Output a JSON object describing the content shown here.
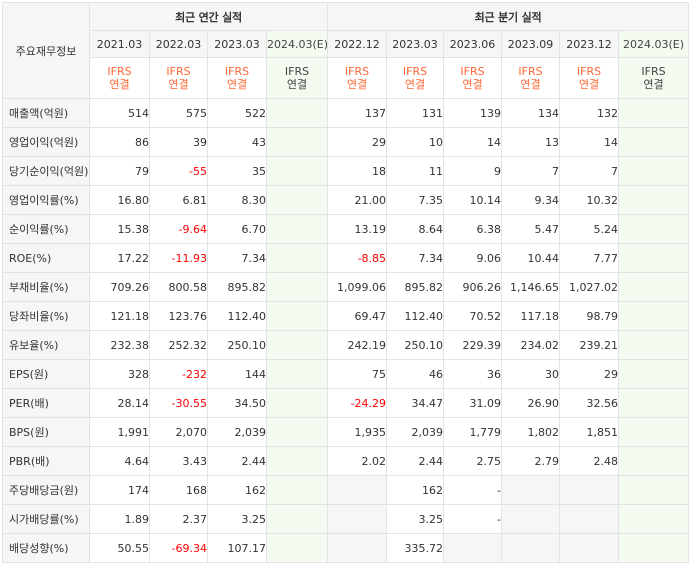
{
  "header": {
    "corner_label": "주요재무정보",
    "annual_title": "최근 연간 실적",
    "quarter_title": "최근 분기 실적",
    "annual_periods": [
      "2021.03",
      "2022.03",
      "2023.03",
      "2024.03(E)"
    ],
    "quarter_periods": [
      "2022.12",
      "2023.03",
      "2023.06",
      "2023.09",
      "2023.12",
      "2024.03(E)"
    ],
    "ifrs_top": "IFRS",
    "ifrs_bottom": "연결"
  },
  "rows": [
    {
      "label": "매출액(억원)",
      "annual": [
        "514",
        "575",
        "522",
        ""
      ],
      "quarter": [
        "137",
        "131",
        "139",
        "134",
        "132",
        ""
      ]
    },
    {
      "label": "영업이익(억원)",
      "annual": [
        "86",
        "39",
        "43",
        ""
      ],
      "quarter": [
        "29",
        "10",
        "14",
        "13",
        "14",
        ""
      ]
    },
    {
      "label": "당기순이익(억원)",
      "annual": [
        "79",
        "-55",
        "35",
        ""
      ],
      "quarter": [
        "18",
        "11",
        "9",
        "7",
        "7",
        ""
      ]
    },
    {
      "label": "영업이익률(%)",
      "annual": [
        "16.80",
        "6.81",
        "8.30",
        ""
      ],
      "quarter": [
        "21.00",
        "7.35",
        "10.14",
        "9.34",
        "10.32",
        ""
      ]
    },
    {
      "label": "순이익률(%)",
      "annual": [
        "15.38",
        "-9.64",
        "6.70",
        ""
      ],
      "quarter": [
        "13.19",
        "8.64",
        "6.38",
        "5.47",
        "5.24",
        ""
      ]
    },
    {
      "label": "ROE(%)",
      "annual": [
        "17.22",
        "-11.93",
        "7.34",
        ""
      ],
      "quarter": [
        "-8.85",
        "7.34",
        "9.06",
        "10.44",
        "7.77",
        ""
      ]
    },
    {
      "label": "부채비율(%)",
      "annual": [
        "709.26",
        "800.58",
        "895.82",
        ""
      ],
      "quarter": [
        "1,099.06",
        "895.82",
        "906.26",
        "1,146.65",
        "1,027.02",
        ""
      ]
    },
    {
      "label": "당좌비율(%)",
      "annual": [
        "121.18",
        "123.76",
        "112.40",
        ""
      ],
      "quarter": [
        "69.47",
        "112.40",
        "70.52",
        "117.18",
        "98.79",
        ""
      ]
    },
    {
      "label": "유보율(%)",
      "annual": [
        "232.38",
        "252.32",
        "250.10",
        ""
      ],
      "quarter": [
        "242.19",
        "250.10",
        "229.39",
        "234.02",
        "239.21",
        ""
      ]
    },
    {
      "label": "EPS(원)",
      "annual": [
        "328",
        "-232",
        "144",
        ""
      ],
      "quarter": [
        "75",
        "46",
        "36",
        "30",
        "29",
        ""
      ]
    },
    {
      "label": "PER(배)",
      "annual": [
        "28.14",
        "-30.55",
        "34.50",
        ""
      ],
      "quarter": [
        "-24.29",
        "34.47",
        "31.09",
        "26.90",
        "32.56",
        ""
      ]
    },
    {
      "label": "BPS(원)",
      "annual": [
        "1,991",
        "2,070",
        "2,039",
        ""
      ],
      "quarter": [
        "1,935",
        "2,039",
        "1,779",
        "1,802",
        "1,851",
        ""
      ]
    },
    {
      "label": "PBR(배)",
      "annual": [
        "4.64",
        "3.43",
        "2.44",
        ""
      ],
      "quarter": [
        "2.02",
        "2.44",
        "2.75",
        "2.79",
        "2.48",
        ""
      ]
    },
    {
      "label": "주당배당금(원)",
      "annual": [
        "174",
        "168",
        "162",
        ""
      ],
      "quarter": [
        "",
        "162",
        "-",
        "",
        "",
        ""
      ]
    },
    {
      "label": "시가배당률(%)",
      "annual": [
        "1.89",
        "2.37",
        "3.25",
        ""
      ],
      "quarter": [
        "",
        "3.25",
        "-",
        "",
        "",
        ""
      ]
    },
    {
      "label": "배당성향(%)",
      "annual": [
        "50.55",
        "-69.34",
        "107.17",
        ""
      ],
      "quarter": [
        "",
        "335.72",
        "",
        "",
        "",
        ""
      ]
    }
  ],
  "colors": {
    "negative": "#ff0000",
    "ifrs": "#ff6633",
    "estimate_bg": "#f4fbf0"
  }
}
